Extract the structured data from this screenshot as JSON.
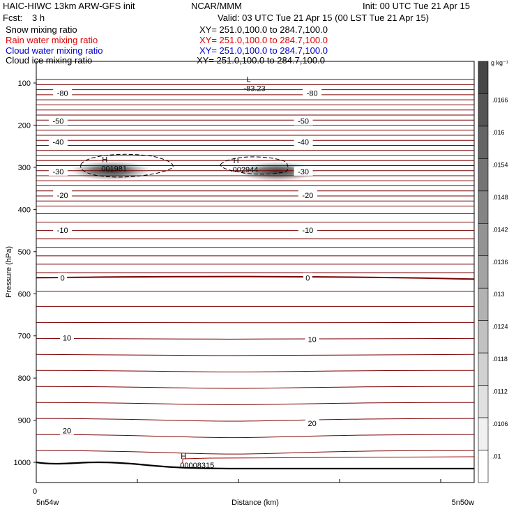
{
  "header": {
    "model": "HAIC-HIWC 13km ARW-GFS init",
    "org": "NCAR/MMM",
    "init": "Init: 00 UTC Tue 21 Apr 15",
    "fcst_label": "Fcst:",
    "fcst_value": "3 h",
    "valid": "Valid: 03 UTC Tue 21 Apr 15 (00 LST Tue 21 Apr 15)",
    "fields": [
      {
        "name": "Snow mixing ratio",
        "xy": "XY= 251.0,100.0 to 284.7,100.0",
        "color": "#000000"
      },
      {
        "name": "Rain water mixing ratio",
        "xy": "XY= 251.0,100.0 to 284.7,100.0",
        "color": "#e00000"
      },
      {
        "name": "Cloud water mixing ratio",
        "xy": "XY= 251.0,100.0 to 284.7,100.0",
        "color": "#0000c8"
      },
      {
        "name": "Cloud ice mixing ratio",
        "xy": "XY= 251.0,100.0 to 284.7,100.0",
        "color": "#000000"
      }
    ]
  },
  "chart_data": {
    "type": "cross-section contour",
    "ylabel": "Pressure (hPa)",
    "xlabel": "Distance (km)",
    "y_ticks": [
      100,
      200,
      300,
      400,
      500,
      600,
      700,
      800,
      900,
      1000
    ],
    "ylim": [
      1050,
      75
    ],
    "xlim": [
      0,
      100
    ],
    "x_tick_zero": "0",
    "x_left_label": "5n54w",
    "x_right_label": "5n50w",
    "isotherm_color": "#7a0000",
    "isotherm_labels": [
      {
        "text": "-80",
        "x": 6,
        "p": 124
      },
      {
        "text": "-80",
        "x": 63,
        "p": 124
      },
      {
        "text": "-50",
        "x": 5,
        "p": 190
      },
      {
        "text": "-50",
        "x": 61,
        "p": 190
      },
      {
        "text": "-40",
        "x": 5,
        "p": 240
      },
      {
        "text": "-40",
        "x": 61,
        "p": 240
      },
      {
        "text": "-30",
        "x": 5,
        "p": 310
      },
      {
        "text": "-30",
        "x": 61,
        "p": 310
      },
      {
        "text": "-20",
        "x": 6,
        "p": 366
      },
      {
        "text": "-20",
        "x": 62,
        "p": 366
      },
      {
        "text": "-10",
        "x": 6,
        "p": 449
      },
      {
        "text": "-10",
        "x": 62,
        "p": 449
      },
      {
        "text": "0",
        "x": 6,
        "p": 562
      },
      {
        "text": "0",
        "x": 62,
        "p": 562
      },
      {
        "text": "10",
        "x": 7,
        "p": 705
      },
      {
        "text": "10",
        "x": 63,
        "p": 708
      },
      {
        "text": "20",
        "x": 7,
        "p": 925
      },
      {
        "text": "20",
        "x": 63,
        "p": 907
      }
    ],
    "extrema": [
      {
        "mark": "L",
        "value": "-83.23",
        "x": 48,
        "p": 114,
        "color": "#a00000"
      },
      {
        "mark": "H",
        "value": ".001981",
        "x": 15,
        "p": 304,
        "color": "#000000"
      },
      {
        "mark": "H",
        "value": ".002944",
        "x": 45,
        "p": 307,
        "color": "#000000"
      },
      {
        "mark": "H",
        "value": ".00008315",
        "x": 33,
        "p": 1008,
        "color": "#a00000"
      }
    ],
    "snow_maxima": [
      {
        "x": 17,
        "p": 308,
        "value": 0.001981
      },
      {
        "x": 55,
        "p": 310,
        "value": 0.002944
      }
    ],
    "colorbar": {
      "unit": "g kg⁻¹",
      "labels": [
        ".0166",
        ".016",
        ".0154",
        ".0148",
        ".0142",
        ".0136",
        ".013",
        ".0124",
        ".0118",
        ".0112",
        ".0106",
        ".01"
      ]
    }
  }
}
